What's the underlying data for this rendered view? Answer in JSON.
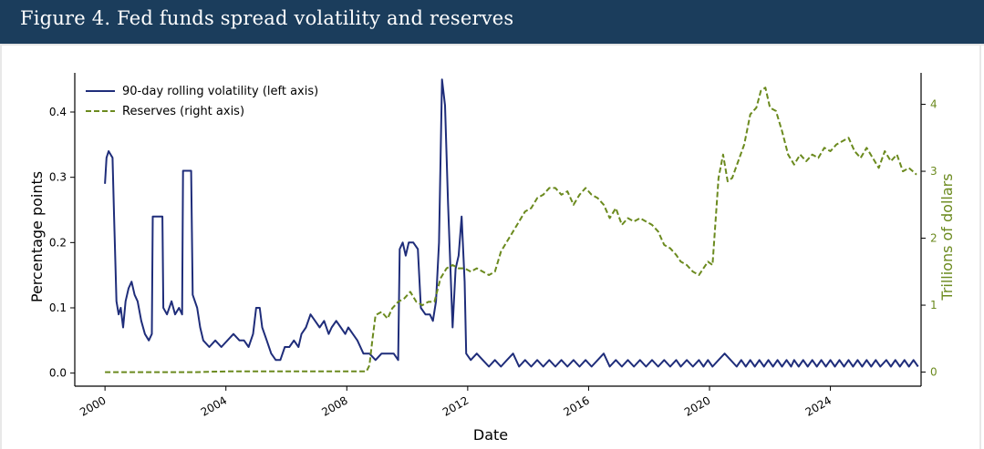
{
  "figure": {
    "title": "Figure 4. Fed funds spread volatility and reserves"
  },
  "chart_data": {
    "type": "line",
    "xlabel": "Date",
    "ylabel_left": "Percentage points",
    "ylabel_right": "Trillions of dollars",
    "xlim": [
      1999.0,
      2027.0
    ],
    "ylim_left": [
      -0.02,
      0.46
    ],
    "ylim_right": [
      -0.21,
      4.47
    ],
    "x_ticks": [
      2000,
      2004,
      2008,
      2012,
      2016,
      2020,
      2024
    ],
    "x_tick_labels": [
      "2000",
      "2004",
      "2008",
      "2012",
      "2016",
      "2020",
      "2024"
    ],
    "y_left_ticks": [
      0.0,
      0.1,
      0.2,
      0.3,
      0.4
    ],
    "y_left_tick_labels": [
      "0.0",
      "0.1",
      "0.2",
      "0.3",
      "0.4"
    ],
    "y_right_ticks": [
      0,
      1,
      2,
      3,
      4
    ],
    "y_right_tick_labels": [
      "0",
      "1",
      "2",
      "3",
      "4"
    ],
    "legend_position": "top-left",
    "grid": false,
    "series": [
      {
        "name": "90-day rolling volatility (left axis)",
        "axis": "left",
        "color": "#1f2d7a",
        "style": "solid",
        "points": [
          [
            2000.0,
            0.29
          ],
          [
            2000.05,
            0.33
          ],
          [
            2000.12,
            0.34
          ],
          [
            2000.25,
            0.33
          ],
          [
            2000.3,
            0.24
          ],
          [
            2000.38,
            0.11
          ],
          [
            2000.45,
            0.09
          ],
          [
            2000.52,
            0.1
          ],
          [
            2000.6,
            0.07
          ],
          [
            2000.68,
            0.11
          ],
          [
            2000.78,
            0.13
          ],
          [
            2000.88,
            0.14
          ],
          [
            2000.98,
            0.12
          ],
          [
            2001.08,
            0.11
          ],
          [
            2001.2,
            0.08
          ],
          [
            2001.32,
            0.06
          ],
          [
            2001.45,
            0.05
          ],
          [
            2001.55,
            0.06
          ],
          [
            2001.58,
            0.24
          ],
          [
            2001.7,
            0.24
          ],
          [
            2001.9,
            0.24
          ],
          [
            2001.93,
            0.1
          ],
          [
            2002.05,
            0.09
          ],
          [
            2002.2,
            0.11
          ],
          [
            2002.32,
            0.09
          ],
          [
            2002.45,
            0.1
          ],
          [
            2002.55,
            0.09
          ],
          [
            2002.58,
            0.31
          ],
          [
            2002.7,
            0.31
          ],
          [
            2002.85,
            0.31
          ],
          [
            2002.9,
            0.12
          ],
          [
            2003.05,
            0.1
          ],
          [
            2003.15,
            0.07
          ],
          [
            2003.25,
            0.05
          ],
          [
            2003.45,
            0.04
          ],
          [
            2003.65,
            0.05
          ],
          [
            2003.85,
            0.04
          ],
          [
            2004.05,
            0.05
          ],
          [
            2004.25,
            0.06
          ],
          [
            2004.45,
            0.05
          ],
          [
            2004.6,
            0.05
          ],
          [
            2004.75,
            0.04
          ],
          [
            2004.9,
            0.06
          ],
          [
            2005.0,
            0.1
          ],
          [
            2005.12,
            0.1
          ],
          [
            2005.2,
            0.07
          ],
          [
            2005.35,
            0.05
          ],
          [
            2005.5,
            0.03
          ],
          [
            2005.65,
            0.02
          ],
          [
            2005.8,
            0.02
          ],
          [
            2005.95,
            0.04
          ],
          [
            2006.1,
            0.04
          ],
          [
            2006.25,
            0.05
          ],
          [
            2006.4,
            0.04
          ],
          [
            2006.5,
            0.06
          ],
          [
            2006.65,
            0.07
          ],
          [
            2006.8,
            0.09
          ],
          [
            2006.95,
            0.08
          ],
          [
            2007.1,
            0.07
          ],
          [
            2007.25,
            0.08
          ],
          [
            2007.4,
            0.06
          ],
          [
            2007.5,
            0.07
          ],
          [
            2007.65,
            0.08
          ],
          [
            2007.8,
            0.07
          ],
          [
            2007.95,
            0.06
          ],
          [
            2008.05,
            0.07
          ],
          [
            2008.2,
            0.06
          ],
          [
            2008.35,
            0.05
          ],
          [
            2008.55,
            0.03
          ],
          [
            2008.75,
            0.03
          ],
          [
            2008.95,
            0.02
          ],
          [
            2009.15,
            0.03
          ],
          [
            2009.35,
            0.03
          ],
          [
            2009.55,
            0.03
          ],
          [
            2009.7,
            0.02
          ],
          [
            2009.75,
            0.19
          ],
          [
            2009.85,
            0.2
          ],
          [
            2009.95,
            0.18
          ],
          [
            2010.05,
            0.2
          ],
          [
            2010.2,
            0.2
          ],
          [
            2010.35,
            0.19
          ],
          [
            2010.45,
            0.1
          ],
          [
            2010.6,
            0.09
          ],
          [
            2010.75,
            0.09
          ],
          [
            2010.85,
            0.08
          ],
          [
            2010.95,
            0.11
          ],
          [
            2011.05,
            0.2
          ],
          [
            2011.15,
            0.45
          ],
          [
            2011.25,
            0.41
          ],
          [
            2011.35,
            0.26
          ],
          [
            2011.5,
            0.07
          ],
          [
            2011.6,
            0.16
          ],
          [
            2011.7,
            0.18
          ],
          [
            2011.8,
            0.24
          ],
          [
            2011.9,
            0.14
          ],
          [
            2011.95,
            0.03
          ],
          [
            2012.1,
            0.02
          ],
          [
            2012.3,
            0.03
          ],
          [
            2012.5,
            0.02
          ],
          [
            2012.7,
            0.01
          ],
          [
            2012.9,
            0.02
          ],
          [
            2013.1,
            0.01
          ],
          [
            2013.3,
            0.02
          ],
          [
            2013.5,
            0.03
          ],
          [
            2013.7,
            0.01
          ],
          [
            2013.9,
            0.02
          ],
          [
            2014.1,
            0.01
          ],
          [
            2014.3,
            0.02
          ],
          [
            2014.5,
            0.01
          ],
          [
            2014.7,
            0.02
          ],
          [
            2014.9,
            0.01
          ],
          [
            2015.1,
            0.02
          ],
          [
            2015.3,
            0.01
          ],
          [
            2015.5,
            0.02
          ],
          [
            2015.7,
            0.01
          ],
          [
            2015.9,
            0.02
          ],
          [
            2016.1,
            0.01
          ],
          [
            2016.3,
            0.02
          ],
          [
            2016.5,
            0.03
          ],
          [
            2016.7,
            0.01
          ],
          [
            2016.9,
            0.02
          ],
          [
            2017.1,
            0.01
          ],
          [
            2017.3,
            0.02
          ],
          [
            2017.5,
            0.01
          ],
          [
            2017.7,
            0.02
          ],
          [
            2017.9,
            0.01
          ],
          [
            2018.1,
            0.02
          ],
          [
            2018.3,
            0.01
          ],
          [
            2018.5,
            0.02
          ],
          [
            2018.7,
            0.01
          ],
          [
            2018.9,
            0.02
          ],
          [
            2019.05,
            0.01
          ],
          [
            2019.25,
            0.02
          ],
          [
            2019.45,
            0.01
          ],
          [
            2019.65,
            0.02
          ],
          [
            2019.8,
            0.01
          ],
          [
            2019.95,
            0.02
          ],
          [
            2020.1,
            0.01
          ],
          [
            2020.3,
            0.02
          ],
          [
            2020.5,
            0.03
          ],
          [
            2020.7,
            0.02
          ],
          [
            2020.9,
            0.01
          ],
          [
            2021.05,
            0.02
          ],
          [
            2021.2,
            0.01
          ],
          [
            2021.35,
            0.02
          ],
          [
            2021.5,
            0.01
          ],
          [
            2021.65,
            0.02
          ],
          [
            2021.8,
            0.01
          ],
          [
            2021.95,
            0.02
          ],
          [
            2022.1,
            0.01
          ],
          [
            2022.25,
            0.02
          ],
          [
            2022.4,
            0.01
          ],
          [
            2022.55,
            0.02
          ],
          [
            2022.7,
            0.01
          ],
          [
            2022.8,
            0.02
          ],
          [
            2022.95,
            0.01
          ],
          [
            2023.1,
            0.02
          ],
          [
            2023.25,
            0.01
          ],
          [
            2023.4,
            0.02
          ],
          [
            2023.55,
            0.01
          ],
          [
            2023.7,
            0.02
          ],
          [
            2023.85,
            0.01
          ],
          [
            2024.0,
            0.02
          ],
          [
            2024.15,
            0.01
          ],
          [
            2024.3,
            0.02
          ],
          [
            2024.45,
            0.01
          ],
          [
            2024.6,
            0.02
          ],
          [
            2024.75,
            0.01
          ],
          [
            2024.9,
            0.02
          ],
          [
            2025.05,
            0.01
          ],
          [
            2025.2,
            0.02
          ],
          [
            2025.35,
            0.01
          ],
          [
            2025.5,
            0.02
          ],
          [
            2025.65,
            0.01
          ],
          [
            2025.85,
            0.02
          ],
          [
            2026.0,
            0.01
          ],
          [
            2026.15,
            0.02
          ],
          [
            2026.3,
            0.01
          ],
          [
            2026.45,
            0.02
          ],
          [
            2026.6,
            0.01
          ],
          [
            2026.75,
            0.02
          ],
          [
            2026.9,
            0.01
          ]
        ]
      },
      {
        "name": "Reserves (right axis)",
        "axis": "right",
        "color": "#6b8a1e",
        "style": "dashed",
        "points": [
          [
            2000.0,
            0.0
          ],
          [
            2002.0,
            0.0
          ],
          [
            2003.0,
            0.0
          ],
          [
            2004.0,
            0.01
          ],
          [
            2005.0,
            0.01
          ],
          [
            2006.0,
            0.01
          ],
          [
            2007.0,
            0.01
          ],
          [
            2008.0,
            0.01
          ],
          [
            2008.65,
            0.01
          ],
          [
            2008.75,
            0.1
          ],
          [
            2008.85,
            0.5
          ],
          [
            2008.95,
            0.85
          ],
          [
            2009.15,
            0.9
          ],
          [
            2009.35,
            0.8
          ],
          [
            2009.5,
            0.95
          ],
          [
            2009.7,
            1.05
          ],
          [
            2009.9,
            1.1
          ],
          [
            2010.1,
            1.2
          ],
          [
            2010.3,
            1.05
          ],
          [
            2010.5,
            1.0
          ],
          [
            2010.7,
            1.05
          ],
          [
            2010.9,
            1.05
          ],
          [
            2011.1,
            1.4
          ],
          [
            2011.3,
            1.55
          ],
          [
            2011.5,
            1.6
          ],
          [
            2011.7,
            1.55
          ],
          [
            2011.9,
            1.55
          ],
          [
            2012.1,
            1.5
          ],
          [
            2012.3,
            1.55
          ],
          [
            2012.5,
            1.5
          ],
          [
            2012.7,
            1.45
          ],
          [
            2012.9,
            1.5
          ],
          [
            2013.1,
            1.8
          ],
          [
            2013.3,
            1.95
          ],
          [
            2013.5,
            2.1
          ],
          [
            2013.7,
            2.25
          ],
          [
            2013.9,
            2.4
          ],
          [
            2014.1,
            2.45
          ],
          [
            2014.3,
            2.6
          ],
          [
            2014.5,
            2.65
          ],
          [
            2014.7,
            2.75
          ],
          [
            2014.9,
            2.75
          ],
          [
            2015.1,
            2.65
          ],
          [
            2015.3,
            2.7
          ],
          [
            2015.5,
            2.5
          ],
          [
            2015.7,
            2.65
          ],
          [
            2015.9,
            2.75
          ],
          [
            2016.1,
            2.65
          ],
          [
            2016.3,
            2.6
          ],
          [
            2016.5,
            2.5
          ],
          [
            2016.7,
            2.3
          ],
          [
            2016.9,
            2.45
          ],
          [
            2017.1,
            2.2
          ],
          [
            2017.3,
            2.3
          ],
          [
            2017.5,
            2.25
          ],
          [
            2017.7,
            2.3
          ],
          [
            2017.9,
            2.25
          ],
          [
            2018.1,
            2.2
          ],
          [
            2018.3,
            2.1
          ],
          [
            2018.5,
            1.9
          ],
          [
            2018.7,
            1.85
          ],
          [
            2018.9,
            1.75
          ],
          [
            2019.05,
            1.65
          ],
          [
            2019.25,
            1.6
          ],
          [
            2019.45,
            1.5
          ],
          [
            2019.65,
            1.45
          ],
          [
            2019.8,
            1.55
          ],
          [
            2019.95,
            1.65
          ],
          [
            2020.1,
            1.6
          ],
          [
            2020.3,
            2.9
          ],
          [
            2020.45,
            3.25
          ],
          [
            2020.6,
            2.85
          ],
          [
            2020.75,
            2.9
          ],
          [
            2020.95,
            3.15
          ],
          [
            2021.15,
            3.4
          ],
          [
            2021.35,
            3.85
          ],
          [
            2021.55,
            3.95
          ],
          [
            2021.7,
            4.2
          ],
          [
            2021.85,
            4.25
          ],
          [
            2022.0,
            3.95
          ],
          [
            2022.2,
            3.9
          ],
          [
            2022.4,
            3.6
          ],
          [
            2022.6,
            3.25
          ],
          [
            2022.8,
            3.1
          ],
          [
            2023.0,
            3.25
          ],
          [
            2023.2,
            3.15
          ],
          [
            2023.4,
            3.25
          ],
          [
            2023.6,
            3.2
          ],
          [
            2023.8,
            3.35
          ],
          [
            2024.0,
            3.3
          ],
          [
            2024.2,
            3.4
          ],
          [
            2024.4,
            3.45
          ],
          [
            2024.6,
            3.5
          ],
          [
            2024.8,
            3.3
          ],
          [
            2025.0,
            3.2
          ],
          [
            2025.2,
            3.35
          ],
          [
            2025.4,
            3.2
          ],
          [
            2025.6,
            3.05
          ],
          [
            2025.8,
            3.3
          ],
          [
            2026.0,
            3.15
          ],
          [
            2026.2,
            3.25
          ],
          [
            2026.4,
            3.0
          ],
          [
            2026.6,
            3.05
          ],
          [
            2026.85,
            2.95
          ]
        ]
      }
    ]
  }
}
